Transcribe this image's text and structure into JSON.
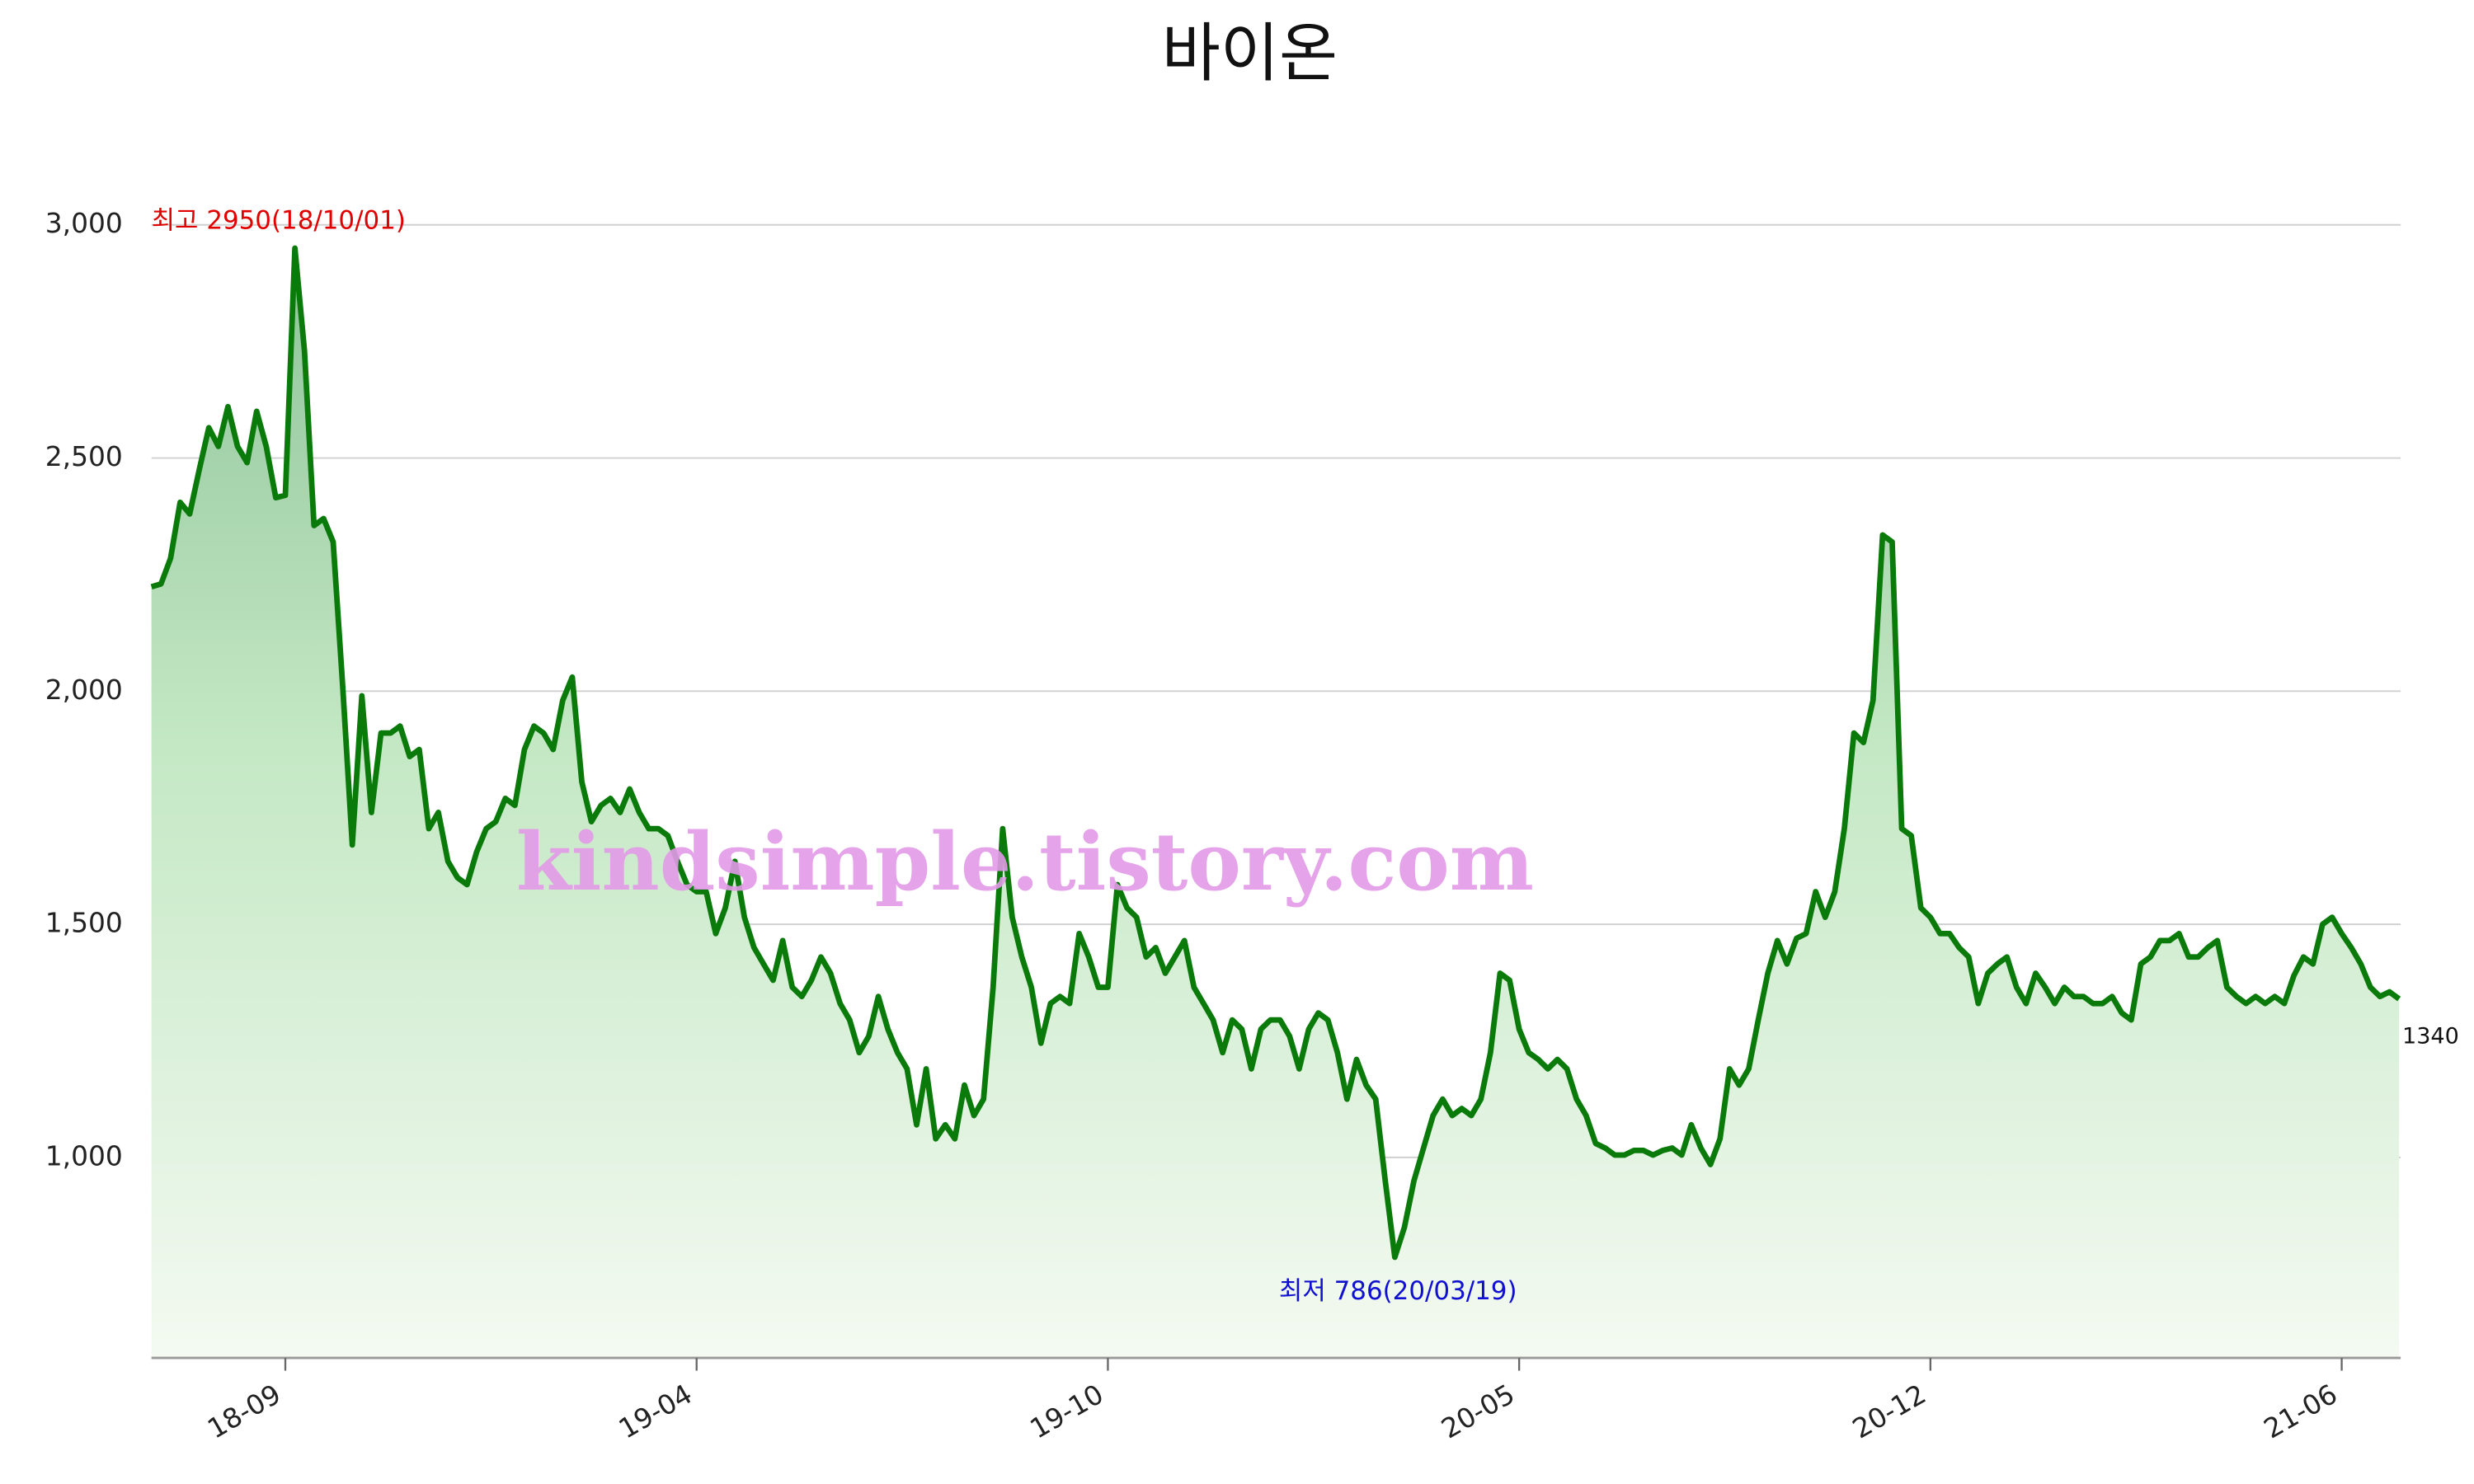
{
  "chart_data": {
    "type": "line",
    "title": "바이온",
    "watermark": "kindsimple.tistory.com",
    "categories": [
      null,
      null,
      null,
      null,
      null,
      null,
      null,
      null,
      null,
      null,
      null,
      null,
      null,
      null,
      "18-09",
      null,
      null,
      null,
      null,
      null,
      null,
      null,
      null,
      null,
      null,
      null,
      null,
      null,
      null,
      null,
      null,
      null,
      null,
      null,
      null,
      null,
      null,
      null,
      null,
      null,
      null,
      null,
      null,
      null,
      null,
      null,
      null,
      null,
      null,
      null,
      null,
      null,
      null,
      null,
      null,
      null,
      null,
      "19-04",
      null,
      null,
      null,
      null,
      null,
      null,
      null,
      null,
      null,
      null,
      null,
      null,
      null,
      null,
      null,
      null,
      null,
      null,
      null,
      null,
      null,
      null,
      null,
      null,
      null,
      null,
      null,
      null,
      null,
      null,
      null,
      null,
      null,
      null,
      null,
      null,
      null,
      null,
      null,
      null,
      null,
      null,
      "19-10",
      null,
      null,
      null,
      null,
      null,
      null,
      null,
      null,
      null,
      null,
      null,
      null,
      null,
      null,
      null,
      null,
      null,
      null,
      null,
      null,
      null,
      null,
      null,
      null,
      null,
      null,
      null,
      null,
      null,
      null,
      null,
      null,
      null,
      null,
      null,
      null,
      null,
      null,
      null,
      null,
      null,
      null,
      "20-05",
      null,
      null,
      null,
      null,
      null,
      null,
      null,
      null,
      null,
      null,
      null,
      null,
      null,
      null,
      null,
      null,
      null,
      null,
      null,
      null,
      null,
      null,
      null,
      null,
      null,
      null,
      null,
      null,
      null,
      null,
      null,
      null,
      null,
      null,
      null,
      null,
      null,
      null,
      null,
      null,
      null,
      null,
      "20-12",
      null,
      null,
      null,
      null,
      null,
      null,
      null,
      null,
      null,
      null,
      null,
      null,
      null,
      null,
      null,
      null,
      null,
      null,
      null,
      null,
      null,
      null,
      null,
      null,
      null,
      null,
      null,
      null,
      null,
      null,
      null,
      null,
      null,
      null,
      null,
      null,
      null,
      null,
      null,
      null,
      null,
      null,
      "21-06",
      null,
      null,
      null,
      null,
      null,
      null
    ],
    "values": [
      2224,
      2230,
      2285,
      2405,
      2380,
      2475,
      2565,
      2525,
      2610,
      2525,
      2490,
      2600,
      2525,
      2415,
      2420,
      2950,
      2730,
      2355,
      2370,
      2320,
      2010,
      1670,
      1990,
      1740,
      1910,
      1910,
      1925,
      1860,
      1875,
      1705,
      1740,
      1635,
      1600,
      1585,
      1655,
      1705,
      1720,
      1770,
      1755,
      1875,
      1925,
      1910,
      1875,
      1980,
      2030,
      1805,
      1720,
      1755,
      1770,
      1740,
      1790,
      1740,
      1705,
      1705,
      1690,
      1635,
      1585,
      1570,
      1570,
      1480,
      1535,
      1635,
      1515,
      1450,
      1415,
      1380,
      1465,
      1365,
      1345,
      1380,
      1430,
      1395,
      1330,
      1295,
      1225,
      1260,
      1345,
      1275,
      1225,
      1190,
      1070,
      1190,
      1040,
      1070,
      1040,
      1155,
      1090,
      1125,
      1365,
      1705,
      1515,
      1430,
      1365,
      1245,
      1330,
      1345,
      1330,
      1480,
      1430,
      1365,
      1365,
      1585,
      1535,
      1515,
      1430,
      1450,
      1395,
      1430,
      1465,
      1365,
      1330,
      1295,
      1225,
      1295,
      1275,
      1190,
      1275,
      1295,
      1295,
      1260,
      1190,
      1275,
      1310,
      1295,
      1225,
      1125,
      1210,
      1155,
      1125,
      950,
      786,
      850,
      950,
      1020,
      1090,
      1125,
      1090,
      1105,
      1090,
      1125,
      1225,
      1395,
      1380,
      1275,
      1225,
      1210,
      1190,
      1210,
      1190,
      1125,
      1090,
      1030,
      1020,
      1005,
      1005,
      1015,
      1015,
      1005,
      1015,
      1020,
      1005,
      1070,
      1020,
      985,
      1040,
      1190,
      1155,
      1190,
      1295,
      1395,
      1465,
      1415,
      1470,
      1480,
      1570,
      1515,
      1570,
      1705,
      1910,
      1890,
      1980,
      2335,
      2320,
      1705,
      1690,
      1535,
      1515,
      1480,
      1480,
      1450,
      1430,
      1330,
      1395,
      1415,
      1430,
      1365,
      1330,
      1395,
      1365,
      1330,
      1365,
      1345,
      1345,
      1330,
      1330,
      1345,
      1310,
      1295,
      1415,
      1430,
      1465,
      1465,
      1480,
      1430,
      1430,
      1450,
      1465,
      1365,
      1345,
      1330,
      1345,
      1330,
      1345,
      1330,
      1390,
      1430,
      1415,
      1500,
      1515,
      1480,
      1450,
      1415,
      1365,
      1345,
      1355,
      1340
    ],
    "color": "#0a7a0a",
    "annotations": [
      {
        "text": "최고 2950(18/10/01)",
        "color": "#e00000"
      },
      {
        "text": "최저 786(20/03/19)",
        "color": "#1010d0"
      }
    ],
    "ylim": [
      570,
      3000
    ],
    "yticks": [
      {
        "value": 1000,
        "label": "1,000"
      },
      {
        "value": 1500,
        "label": "1,500"
      },
      {
        "value": 2000,
        "label": "2,000"
      },
      {
        "value": 2500,
        "label": "2,500"
      },
      {
        "value": 3000,
        "label": "3,000"
      }
    ],
    "grid": true
  }
}
